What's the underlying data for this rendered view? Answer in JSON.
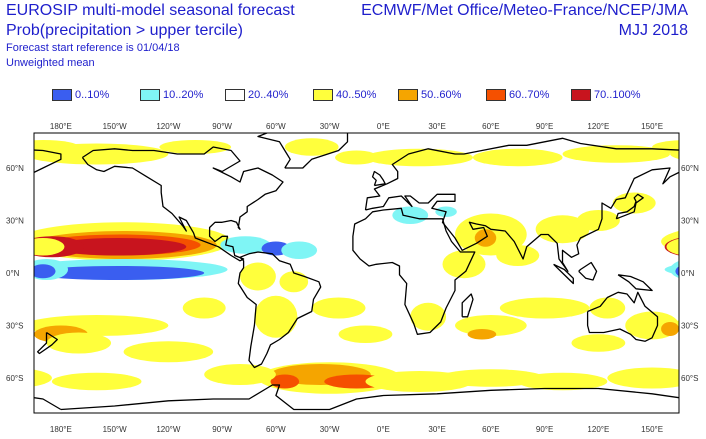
{
  "header": {
    "title_line1": "EUROSIP multi-model seasonal forecast",
    "title_line2": "Prob(precipitation > upper tercile)",
    "start_reference": "Forecast start reference is 01/04/18",
    "mean_type": "Unweighted mean",
    "source": "ECMWF/Met Office/Meteo-France/NCEP/JMA",
    "period": "MJJ 2018"
  },
  "legend": [
    {
      "label": "0..10%",
      "color": "#3a5ef0"
    },
    {
      "label": "10..20%",
      "color": "#7ff5f5"
    },
    {
      "label": "20..40%",
      "color": "#ffffff"
    },
    {
      "label": "40..50%",
      "color": "#ffff3c"
    },
    {
      "label": "50..60%",
      "color": "#f5a500"
    },
    {
      "label": "60..70%",
      "color": "#f55000"
    },
    {
      "label": "70..100%",
      "color": "#c8141e"
    }
  ],
  "axes": {
    "lon_labels": [
      "180°E",
      "150°W",
      "120°W",
      "90°W",
      "60°W",
      "30°W",
      "0°E",
      "30°E",
      "60°E",
      "90°E",
      "120°E",
      "150°E"
    ],
    "lat_labels": [
      "60°N",
      "30°N",
      "0°N",
      "30°S",
      "60°S"
    ]
  },
  "map": {
    "lon_start": 165,
    "lon_step_labels": 30,
    "lat_range": [
      -80,
      80
    ],
    "coastline_color": "#000000"
  }
}
